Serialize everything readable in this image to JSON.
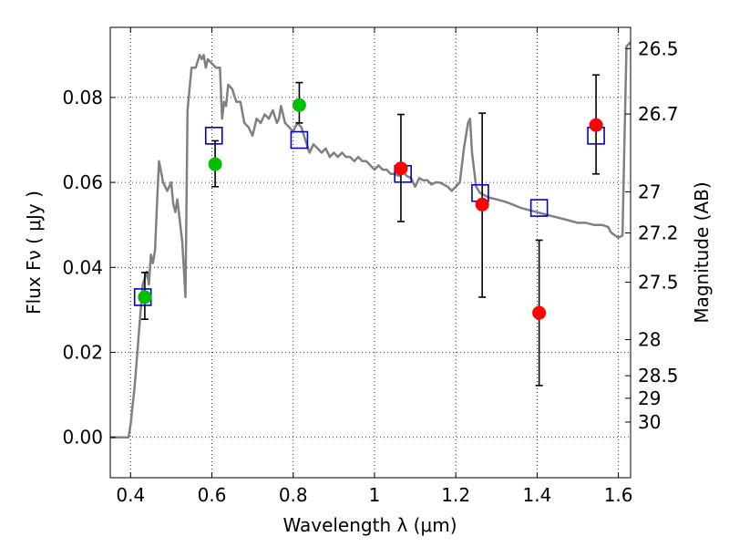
{
  "chart_data": {
    "type": "scatter",
    "xlabel": "Wavelength  λ (μm)",
    "ylabel": "Flux  Fν  ( μJy )",
    "ylabel_right": "Magnitude (AB)",
    "xlim": [
      0.35,
      1.63
    ],
    "ylim": [
      -0.0095,
      0.0965
    ],
    "grid": true,
    "x_ticks": [
      {
        "value": 0.4,
        "label": "0.4"
      },
      {
        "value": 0.6,
        "label": "0.6"
      },
      {
        "value": 0.8,
        "label": "0.8"
      },
      {
        "value": 1.0,
        "label": "1"
      },
      {
        "value": 1.2,
        "label": "1.2"
      },
      {
        "value": 1.4,
        "label": "1.4"
      },
      {
        "value": 1.6,
        "label": "1.6"
      }
    ],
    "y_ticks": [
      {
        "value": 0.0,
        "label": "0.00"
      },
      {
        "value": 0.02,
        "label": "0.02"
      },
      {
        "value": 0.04,
        "label": "0.04"
      },
      {
        "value": 0.06,
        "label": "0.06"
      },
      {
        "value": 0.08,
        "label": "0.08"
      }
    ],
    "right_ticks": [
      {
        "label": "26.5",
        "flux": 0.0915
      },
      {
        "label": "26.7",
        "flux": 0.0761
      },
      {
        "label": "27",
        "flux": 0.0578
      },
      {
        "label": "27.2",
        "flux": 0.0481
      },
      {
        "label": "27.5",
        "flux": 0.0365
      },
      {
        "label": "28",
        "flux": 0.023
      },
      {
        "label": "28.5",
        "flux": 0.0145
      },
      {
        "label": "29",
        "flux": 0.0092
      },
      {
        "label": "30",
        "flux": 0.0036
      }
    ],
    "colors": {
      "model": "#808080",
      "green": "#00bf00",
      "red": "#ff0000",
      "square": "#0000bf",
      "errorbar": "#000000",
      "grid": "#000000"
    },
    "model_sed": [
      [
        0.35,
        0.0
      ],
      [
        0.395,
        0.0
      ],
      [
        0.4,
        0.003
      ],
      [
        0.41,
        0.012
      ],
      [
        0.42,
        0.024
      ],
      [
        0.43,
        0.036
      ],
      [
        0.44,
        0.039
      ],
      [
        0.445,
        0.036
      ],
      [
        0.45,
        0.043
      ],
      [
        0.455,
        0.041
      ],
      [
        0.46,
        0.044
      ],
      [
        0.465,
        0.055
      ],
      [
        0.47,
        0.065
      ],
      [
        0.48,
        0.06
      ],
      [
        0.49,
        0.058
      ],
      [
        0.5,
        0.06
      ],
      [
        0.505,
        0.055
      ],
      [
        0.51,
        0.053
      ],
      [
        0.515,
        0.056
      ],
      [
        0.52,
        0.052
      ],
      [
        0.527,
        0.046
      ],
      [
        0.532,
        0.038
      ],
      [
        0.535,
        0.033
      ],
      [
        0.54,
        0.077
      ],
      [
        0.55,
        0.087
      ],
      [
        0.56,
        0.087
      ],
      [
        0.57,
        0.09
      ],
      [
        0.575,
        0.089
      ],
      [
        0.58,
        0.09
      ],
      [
        0.585,
        0.087
      ],
      [
        0.59,
        0.089
      ],
      [
        0.6,
        0.088
      ],
      [
        0.61,
        0.087
      ],
      [
        0.62,
        0.087
      ],
      [
        0.625,
        0.075
      ],
      [
        0.63,
        0.079
      ],
      [
        0.635,
        0.078
      ],
      [
        0.64,
        0.083
      ],
      [
        0.65,
        0.082
      ],
      [
        0.66,
        0.079
      ],
      [
        0.67,
        0.079
      ],
      [
        0.68,
        0.074
      ],
      [
        0.69,
        0.073
      ],
      [
        0.7,
        0.071
      ],
      [
        0.71,
        0.075
      ],
      [
        0.72,
        0.074
      ],
      [
        0.73,
        0.076
      ],
      [
        0.74,
        0.075
      ],
      [
        0.75,
        0.077
      ],
      [
        0.76,
        0.074
      ],
      [
        0.765,
        0.075
      ],
      [
        0.77,
        0.078
      ],
      [
        0.78,
        0.074
      ],
      [
        0.79,
        0.073
      ],
      [
        0.8,
        0.072
      ],
      [
        0.81,
        0.074
      ],
      [
        0.82,
        0.073
      ],
      [
        0.83,
        0.07
      ],
      [
        0.84,
        0.067
      ],
      [
        0.85,
        0.069
      ],
      [
        0.86,
        0.068
      ],
      [
        0.87,
        0.067
      ],
      [
        0.88,
        0.068
      ],
      [
        0.89,
        0.066
      ],
      [
        0.9,
        0.067
      ],
      [
        0.91,
        0.066
      ],
      [
        0.92,
        0.067
      ],
      [
        0.93,
        0.066
      ],
      [
        0.94,
        0.066
      ],
      [
        0.95,
        0.065
      ],
      [
        0.96,
        0.066
      ],
      [
        0.97,
        0.065
      ],
      [
        0.98,
        0.065
      ],
      [
        0.99,
        0.064
      ],
      [
        1.0,
        0.063
      ],
      [
        1.01,
        0.064
      ],
      [
        1.02,
        0.063
      ],
      [
        1.03,
        0.063
      ],
      [
        1.04,
        0.062
      ],
      [
        1.05,
        0.062
      ],
      [
        1.06,
        0.0615
      ],
      [
        1.07,
        0.0625
      ],
      [
        1.08,
        0.0615
      ],
      [
        1.09,
        0.061
      ],
      [
        1.1,
        0.059
      ],
      [
        1.11,
        0.061
      ],
      [
        1.12,
        0.0605
      ],
      [
        1.13,
        0.0605
      ],
      [
        1.14,
        0.0595
      ],
      [
        1.15,
        0.06
      ],
      [
        1.16,
        0.06
      ],
      [
        1.17,
        0.0595
      ],
      [
        1.18,
        0.059
      ],
      [
        1.19,
        0.058
      ],
      [
        1.2,
        0.059
      ],
      [
        1.21,
        0.06
      ],
      [
        1.22,
        0.068
      ],
      [
        1.23,
        0.074
      ],
      [
        1.235,
        0.075
      ],
      [
        1.24,
        0.067
      ],
      [
        1.25,
        0.059
      ],
      [
        1.26,
        0.0575
      ],
      [
        1.28,
        0.0565
      ],
      [
        1.3,
        0.056
      ],
      [
        1.32,
        0.0555
      ],
      [
        1.34,
        0.0548
      ],
      [
        1.36,
        0.054
      ],
      [
        1.38,
        0.0535
      ],
      [
        1.4,
        0.053
      ],
      [
        1.42,
        0.0525
      ],
      [
        1.44,
        0.052
      ],
      [
        1.46,
        0.0515
      ],
      [
        1.48,
        0.051
      ],
      [
        1.5,
        0.0505
      ],
      [
        1.52,
        0.0505
      ],
      [
        1.54,
        0.05
      ],
      [
        1.56,
        0.05
      ],
      [
        1.575,
        0.0495
      ],
      [
        1.58,
        0.0485
      ],
      [
        1.585,
        0.048
      ],
      [
        1.6,
        0.047
      ],
      [
        1.61,
        0.0475
      ],
      [
        1.62,
        0.092
      ],
      [
        1.63,
        0.093
      ]
    ],
    "series": [
      {
        "marker": "square",
        "x": [
          0.43,
          0.605,
          0.815,
          1.07,
          1.26,
          1.405,
          1.545
        ],
        "y": [
          0.033,
          0.071,
          0.07,
          0.062,
          0.0575,
          0.054,
          0.071
        ]
      },
      {
        "marker": "circle-green",
        "x": [
          0.435,
          0.608,
          0.815
        ],
        "y": [
          0.033,
          0.0643,
          0.0782
        ],
        "yerr_low": [
          0.0052,
          0.0053,
          0.0042
        ],
        "yerr_high": [
          0.0058,
          0.0055,
          0.0053
        ]
      },
      {
        "marker": "circle-red",
        "x": [
          1.065,
          1.265,
          1.405,
          1.545
        ],
        "y": [
          0.0633,
          0.0548,
          0.0293,
          0.0735
        ],
        "yerr_low": [
          0.0125,
          0.0218,
          0.0171,
          0.0115
        ],
        "yerr_high": [
          0.0127,
          0.0215,
          0.0171,
          0.0118
        ]
      }
    ]
  }
}
